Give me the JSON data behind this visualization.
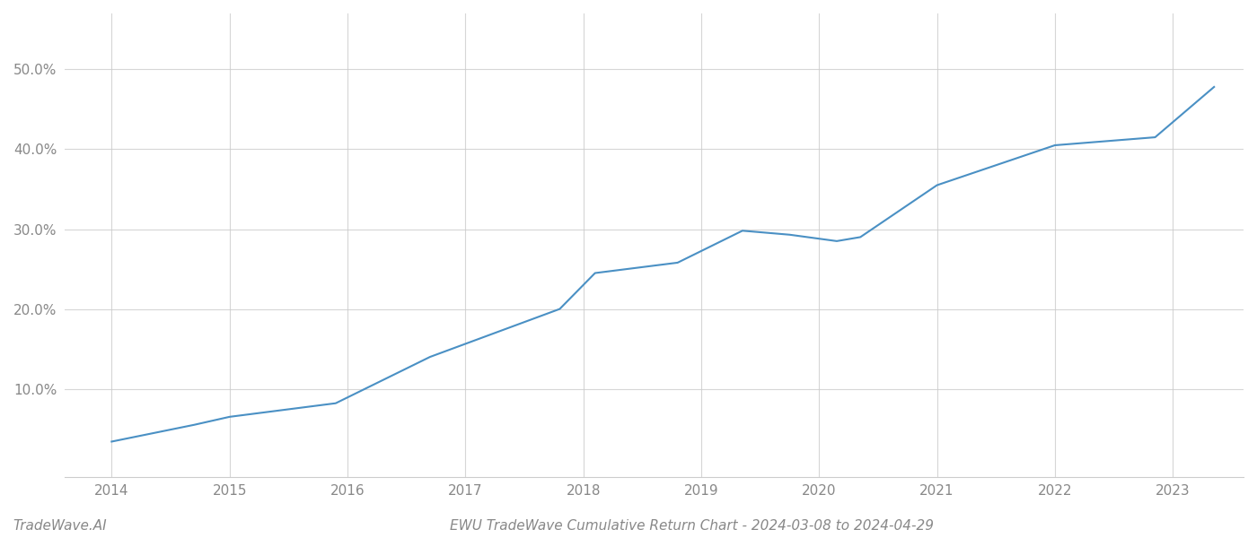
{
  "title": "EWU TradeWave Cumulative Return Chart - 2024-03-08 to 2024-04-29",
  "watermark": "TradeWave.AI",
  "line_color": "#4a90c4",
  "line_width": 1.5,
  "background_color": "#ffffff",
  "grid_color": "#cccccc",
  "xlim": [
    2013.6,
    2023.6
  ],
  "ylim": [
    -0.01,
    0.57
  ],
  "yticks": [
    0.1,
    0.2,
    0.3,
    0.4,
    0.5
  ],
  "ytick_labels": [
    "10.0%",
    "20.0%",
    "30.0%",
    "40.0%",
    "50.0%"
  ],
  "xticks": [
    2014,
    2015,
    2016,
    2017,
    2018,
    2019,
    2020,
    2021,
    2022,
    2023
  ],
  "data_x": [
    2014.0,
    2014.7,
    2015.0,
    2015.9,
    2016.7,
    2017.8,
    2018.1,
    2018.8,
    2019.35,
    2019.75,
    2020.15,
    2020.35,
    2021.0,
    2022.0,
    2022.85,
    2023.35
  ],
  "data_y": [
    0.034,
    0.055,
    0.065,
    0.082,
    0.14,
    0.2,
    0.245,
    0.258,
    0.298,
    0.293,
    0.285,
    0.29,
    0.355,
    0.405,
    0.415,
    0.478
  ],
  "title_fontsize": 11,
  "watermark_fontsize": 11,
  "tick_fontsize": 11,
  "tick_color": "#888888",
  "spine_color": "#cccccc"
}
